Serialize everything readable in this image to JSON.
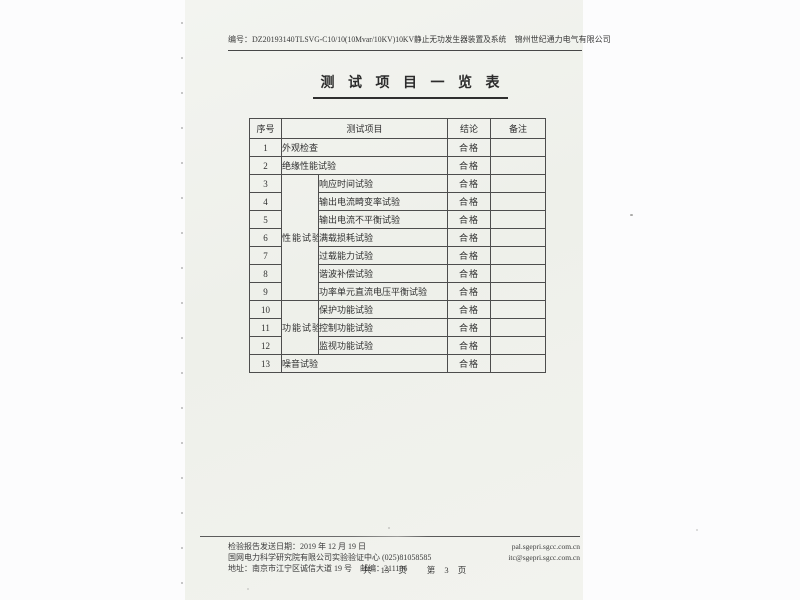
{
  "header": {
    "report_no": "编号：DZ20193140",
    "device": "TLSVG-C10/10(10Mvar/10KV)10KV静止无功发生器装置及系统",
    "company": "锦州世纪通力电气有限公司"
  },
  "title": "测 试 项 目 一 览 表",
  "table": {
    "headers": {
      "index": "序号",
      "item": "测试项目",
      "conclusion": "结论",
      "remark": "备注"
    },
    "rows": [
      {
        "no": "1",
        "item": "外观检查",
        "conclusion": "合格",
        "remark": "",
        "full": true
      },
      {
        "no": "2",
        "item": "绝缘性能试验",
        "conclusion": "合格",
        "remark": "",
        "full": true
      },
      {
        "no": "3",
        "item": "响应时间试验",
        "conclusion": "合格",
        "remark": "",
        "group": "性能试验",
        "group_rowspan": 7
      },
      {
        "no": "4",
        "item": "输出电流畸变率试验",
        "conclusion": "合格",
        "remark": ""
      },
      {
        "no": "5",
        "item": "输出电流不平衡试验",
        "conclusion": "合格",
        "remark": ""
      },
      {
        "no": "6",
        "item": "满载损耗试验",
        "conclusion": "合格",
        "remark": ""
      },
      {
        "no": "7",
        "item": "过载能力试验",
        "conclusion": "合格",
        "remark": ""
      },
      {
        "no": "8",
        "item": "谐波补偿试验",
        "conclusion": "合格",
        "remark": ""
      },
      {
        "no": "9",
        "item": "功率单元直流电压平衡试验",
        "conclusion": "合格",
        "remark": ""
      },
      {
        "no": "10",
        "item": "保护功能试验",
        "conclusion": "合格",
        "remark": "",
        "group": "功能试验",
        "group_rowspan": 3
      },
      {
        "no": "11",
        "item": "控制功能试验",
        "conclusion": "合格",
        "remark": ""
      },
      {
        "no": "12",
        "item": "监视功能试验",
        "conclusion": "合格",
        "remark": ""
      },
      {
        "no": "13",
        "item": "噪音试验",
        "conclusion": "合格",
        "remark": "",
        "full": true
      }
    ]
  },
  "footer": {
    "send_date_line": "检验报告发送日期：2019 年 12 月 19 日",
    "org_line": "国网电力科学研究院有限公司实验验证中心 (025)81058585",
    "address_line": "地址：南京市江宁区诚信大道 19 号　邮编：211106",
    "website": "pal.sgepri.sgcc.com.cn",
    "email": "itc@sgepri.sgcc.com.cn",
    "page_total": "共 13 页",
    "page_current": "第 3 页"
  }
}
